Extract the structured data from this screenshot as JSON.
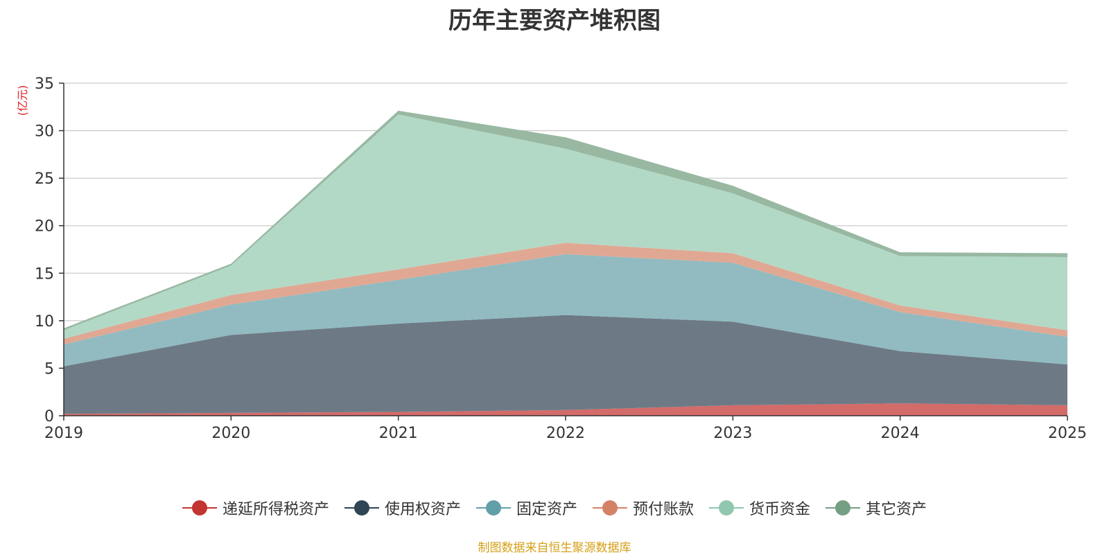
{
  "chart_data": {
    "type": "area",
    "stacked": true,
    "title": "历年主要资产堆积图",
    "ylabel": "(亿元)",
    "xlabel": "",
    "x": [
      "2019",
      "2020",
      "2021",
      "2022",
      "2023",
      "2024",
      "2025"
    ],
    "ylim": [
      0,
      35
    ],
    "yticks": [
      0,
      5,
      10,
      15,
      20,
      25,
      30,
      35
    ],
    "grid": true,
    "legend_position": "bottom",
    "series": [
      {
        "name": "递延所得税资产",
        "color": "#c23531",
        "fill": "#d36b69",
        "values": [
          0.2,
          0.3,
          0.4,
          0.6,
          1.1,
          1.3,
          1.1
        ]
      },
      {
        "name": "使用权资产",
        "color": "#2f4554",
        "fill": "#6d7a86",
        "values": [
          5.0,
          8.2,
          9.3,
          10.0,
          8.8,
          5.5,
          4.3
        ]
      },
      {
        "name": "固定资产",
        "color": "#61a0a8",
        "fill": "#91bbc1",
        "values": [
          2.3,
          3.2,
          4.6,
          6.4,
          6.2,
          4.1,
          2.9
        ]
      },
      {
        "name": "预付账款",
        "color": "#d48265",
        "fill": "#e0a893",
        "values": [
          0.6,
          1.0,
          1.1,
          1.2,
          1.0,
          0.7,
          0.7
        ]
      },
      {
        "name": "货币资金",
        "color": "#91c7ae",
        "fill": "#b2d9c6",
        "values": [
          0.9,
          3.1,
          16.3,
          9.9,
          6.3,
          5.2,
          7.7
        ]
      },
      {
        "name": "其它资产",
        "color": "#749f83",
        "fill": "#98b8a2",
        "values": [
          0.2,
          0.2,
          0.4,
          1.2,
          0.8,
          0.4,
          0.4
        ]
      }
    ]
  },
  "source_note": "制图数据来自恒生聚源数据库",
  "colors": {
    "title": "#333333",
    "unit_label": "#e02020",
    "source_note": "#d4a017",
    "grid": "#cccccc",
    "axis": "#333333"
  }
}
